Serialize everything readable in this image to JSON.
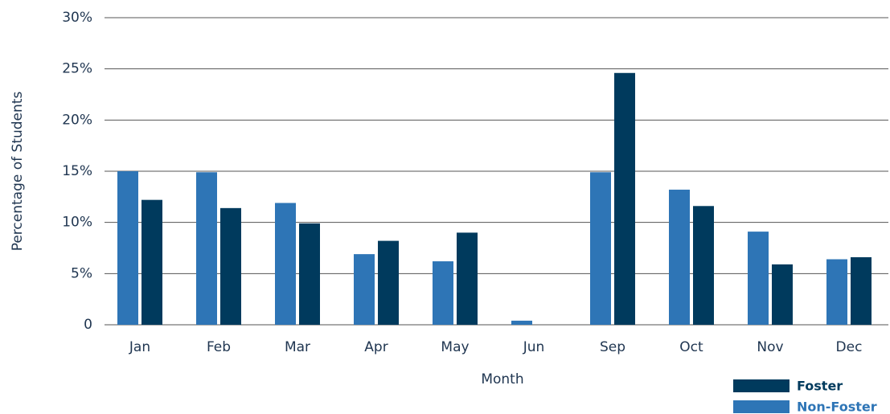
{
  "chart_data": {
    "type": "bar",
    "x_label": "Month",
    "y_label": "Percentage of Students",
    "categories": [
      "Jan",
      "Feb",
      "Mar",
      "Apr",
      "May",
      "Jun",
      "Sep",
      "Oct",
      "Nov",
      "Dec"
    ],
    "series": [
      {
        "name": "Non-Foster",
        "color": "#2e75b6",
        "values": [
          15.0,
          14.9,
          11.9,
          6.9,
          6.2,
          0.4,
          14.9,
          13.2,
          9.1,
          6.4
        ]
      },
      {
        "name": "Foster",
        "color": "#003a5d",
        "values": [
          12.2,
          11.4,
          9.9,
          8.2,
          9.0,
          0,
          24.6,
          11.6,
          5.9,
          6.6
        ]
      }
    ],
    "ylim": [
      0,
      30
    ],
    "yticks": [
      0,
      {
        "value": 5,
        "label": "5%"
      },
      {
        "value": 10,
        "label": "10%"
      },
      {
        "value": 15,
        "label": "15%"
      },
      {
        "value": 20,
        "label": "20%"
      },
      {
        "value": 25,
        "label": "25%"
      },
      {
        "value": 30,
        "label": "30%"
      }
    ],
    "grid": true,
    "legend": "bottom-right"
  }
}
